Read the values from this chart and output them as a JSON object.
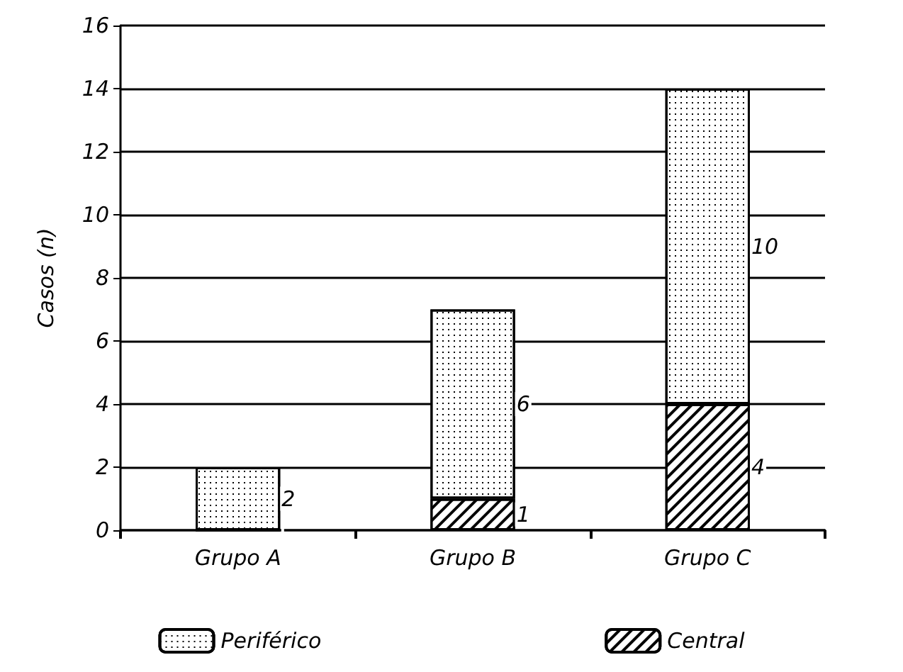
{
  "chart_data": {
    "type": "bar",
    "ylabel": "Casos (n)",
    "categories": [
      "Grupo A",
      "Grupo B",
      "Grupo C"
    ],
    "stacked": true,
    "series": [
      {
        "name": "Central",
        "color": "#ffffff",
        "values": [
          0,
          1,
          4
        ],
        "value_labels": [
          null,
          "1",
          "4"
        ]
      },
      {
        "name": "Periférico",
        "color": "#ffffff",
        "values": [
          2,
          6,
          10
        ],
        "value_labels": [
          "2",
          "6",
          "10"
        ]
      }
    ],
    "ylim": [
      0,
      16
    ],
    "yticks": [
      0,
      2,
      4,
      6,
      8,
      10,
      12,
      14,
      16
    ],
    "grid": "y",
    "legend": "bottom"
  }
}
